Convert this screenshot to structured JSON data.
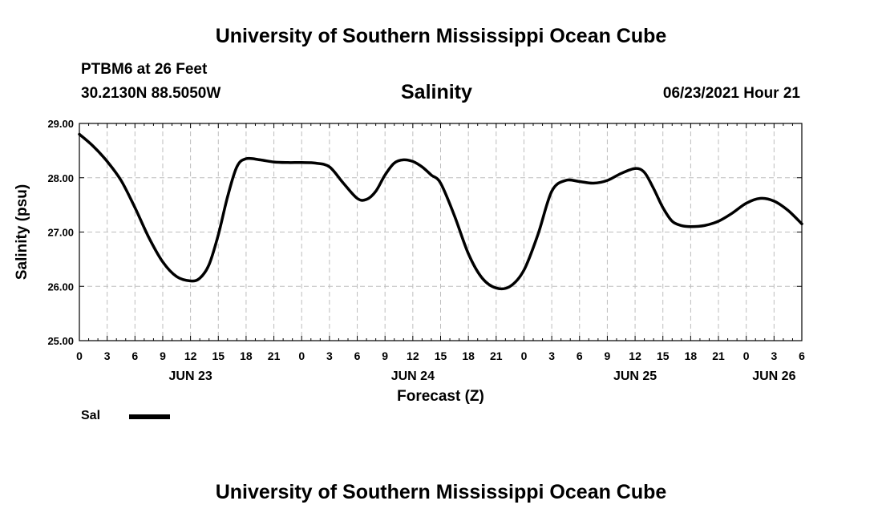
{
  "header": {
    "title": "University of Southern Mississippi Ocean Cube",
    "station": "PTBM6 at 26 Feet",
    "coords": "30.2130N  88.5050W",
    "variable": "Salinity",
    "timestamp": "06/23/2021 Hour 21"
  },
  "footer": {
    "title": "University of Southern Mississippi Ocean Cube"
  },
  "legend": {
    "label": "Sal"
  },
  "chart_data": {
    "type": "line",
    "title": "Salinity",
    "xlabel": "Forecast (Z)",
    "ylabel": "Salinity (psu)",
    "ylim": [
      25.0,
      29.0
    ],
    "xlim_hours": [
      0,
      78
    ],
    "y_ticks": [
      "25.00",
      "26.00",
      "27.00",
      "28.00",
      "29.00"
    ],
    "x_tick_labels": [
      "0",
      "3",
      "6",
      "9",
      "12",
      "15",
      "18",
      "21",
      "0",
      "3",
      "6",
      "9",
      "12",
      "15",
      "18",
      "21",
      "0",
      "3",
      "6",
      "9",
      "12",
      "15",
      "18",
      "21",
      "0",
      "3",
      "6"
    ],
    "day_labels": [
      {
        "label": "JUN 23",
        "hour": 12
      },
      {
        "label": "JUN 24",
        "hour": 36
      },
      {
        "label": "JUN 25",
        "hour": 60
      },
      {
        "label": "JUN 26",
        "hour": 75
      }
    ],
    "grid": true,
    "series": [
      {
        "name": "Sal",
        "color": "#000000",
        "x": [
          0,
          1.5,
          3,
          4.5,
          6,
          7.5,
          9,
          10.5,
          12,
          13,
          14,
          15,
          16,
          17,
          18,
          19.5,
          21,
          22.5,
          24,
          25.5,
          27,
          28.5,
          30,
          31,
          32,
          33,
          34,
          35,
          36,
          37,
          38,
          39,
          40.5,
          42,
          43.5,
          45,
          46.5,
          48,
          49.5,
          51,
          52.5,
          54,
          55.5,
          57,
          58.5,
          60,
          61,
          62,
          63,
          64,
          65,
          66,
          67.5,
          69,
          70.5,
          72,
          73.5,
          75,
          76.5,
          78
        ],
        "values": [
          28.8,
          28.58,
          28.3,
          27.95,
          27.45,
          26.9,
          26.45,
          26.18,
          26.1,
          26.15,
          26.4,
          26.95,
          27.65,
          28.2,
          28.35,
          28.33,
          28.29,
          28.28,
          28.28,
          28.27,
          28.2,
          27.9,
          27.62,
          27.6,
          27.75,
          28.05,
          28.27,
          28.33,
          28.3,
          28.2,
          28.05,
          27.9,
          27.3,
          26.6,
          26.15,
          25.97,
          26.0,
          26.3,
          26.95,
          27.75,
          27.95,
          27.93,
          27.9,
          27.95,
          28.08,
          28.17,
          28.1,
          27.8,
          27.45,
          27.2,
          27.12,
          27.1,
          27.12,
          27.2,
          27.35,
          27.53,
          27.62,
          27.57,
          27.4,
          27.15
        ]
      }
    ]
  }
}
